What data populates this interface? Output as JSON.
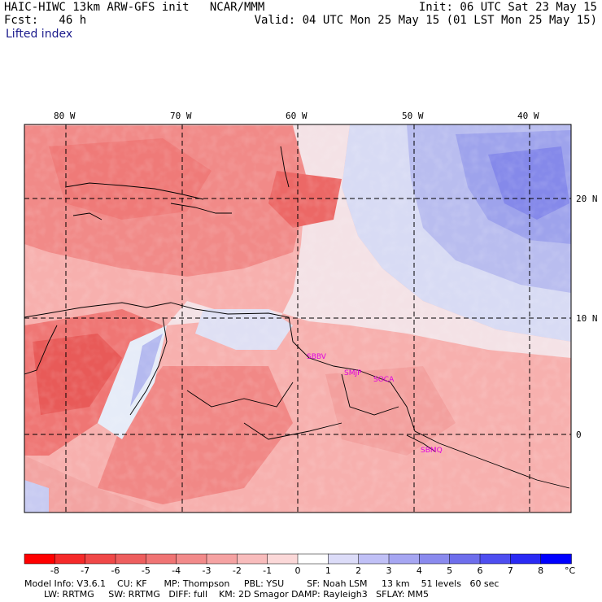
{
  "header": {
    "title_left": "HAIC-HIWC 13km ARW-GFS init   NCAR/MMM",
    "forecast": "Fcst:   46 h",
    "field": "Lifted index",
    "init": "Init: 06 UTC Sat 23 May 15",
    "valid": "Valid: 04 UTC Mon 25 May 15 (01 LST Mon 25 May 15)"
  },
  "map": {
    "lon_labels": [
      "80 W",
      "70 W",
      "60 W",
      "50 W",
      "40 W"
    ],
    "lat_labels": [
      "20 N",
      "10 N",
      "0"
    ],
    "stations": [
      "SBBV",
      "SMJP",
      "SOCA",
      "SBMQ"
    ],
    "colors": {
      "warm_strong": "#e53c3c",
      "warm_mid": "#f07070",
      "warm_light": "#f6a6a6",
      "neutral": "#fde8e8",
      "cool_light": "#d6d8f4",
      "cool_mid": "#9ea2ec",
      "station": "#e000e0"
    }
  },
  "colorbar": {
    "labels": [
      "-8",
      "-7",
      "-6",
      "-5",
      "-4",
      "-3",
      "-2",
      "-1",
      "0",
      "1",
      "2",
      "3",
      "4",
      "5",
      "6",
      "7",
      "8"
    ],
    "unit": "°C",
    "colors": [
      "#ff0000",
      "#f52a2a",
      "#f04848",
      "#ee5e5e",
      "#f07474",
      "#f28a8a",
      "#f5a2a2",
      "#f8bcbc",
      "#fbd8d8",
      "#ffffff",
      "#dcdcf8",
      "#c0c0f6",
      "#a6a6f2",
      "#8a8aee",
      "#6e6eec",
      "#4e4ef0",
      "#2a2af4",
      "#0000ff"
    ]
  },
  "footer": {
    "line1": "Model Info: V3.6.1    CU: KF      MP: Thompson     PBL: YSU        SF: Noah LSM     13 km    51 levels   60 sec",
    "line2": "LW: RRTMG     SW: RRTMG   DIFF: full    KM: 2D Smagor DAMP: Rayleigh3   SFLAY: MM5"
  }
}
